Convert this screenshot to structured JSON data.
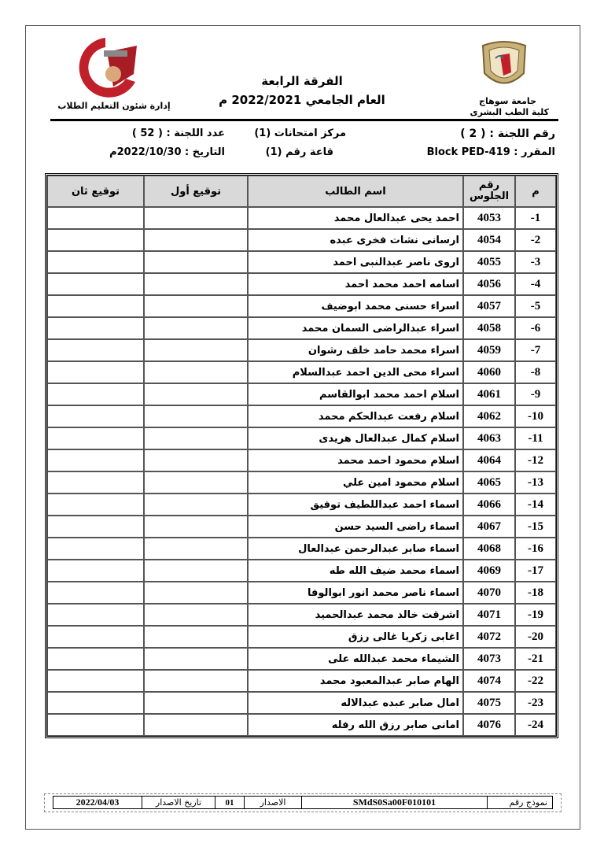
{
  "header": {
    "university": "جامعة سوهاج",
    "faculty": "كلية الطب البشرى",
    "year_level": "الفرقة الرابعة",
    "academic_year": "العام الجامعي 2022/2021 م",
    "department": "إدارة شئون التعليم الطلاب",
    "left_logo_text": "جامعة سوهاج كلية الطب"
  },
  "info": {
    "committee_no": "رقم اللجنة : ( 2 )",
    "exam_center": "مركز امتحانات (1)",
    "committee_count": "عدد اللجنة : ( 52 )",
    "course": "المقرر : Block PED-419",
    "hall": "قاعة رقم (1)",
    "date": "التاريخ : 2022/10/30م"
  },
  "table": {
    "headers": {
      "index": "م",
      "seat": "رقم الجلوس",
      "name": "اسم الطالب",
      "sig1": "توقيع أول",
      "sig2": "توقيع ثان"
    },
    "rows": [
      {
        "index": "1-",
        "seat": "4053",
        "name": "احمد يحى عبدالعال محمد"
      },
      {
        "index": "2-",
        "seat": "4054",
        "name": "ارسانى نشات فخرى عبده"
      },
      {
        "index": "3-",
        "seat": "4055",
        "name": "اروى ناصر عبدالنبى احمد"
      },
      {
        "index": "4-",
        "seat": "4056",
        "name": "اسامه احمد محمد احمد"
      },
      {
        "index": "5-",
        "seat": "4057",
        "name": "اسراء حسنى محمد ابوضيف"
      },
      {
        "index": "6-",
        "seat": "4058",
        "name": "اسراء عبدالراضى السمان محمد"
      },
      {
        "index": "7-",
        "seat": "4059",
        "name": "اسراء محمد حامد خلف رشوان"
      },
      {
        "index": "8-",
        "seat": "4060",
        "name": "اسراء محى الدين احمد عبدالسلام"
      },
      {
        "index": "9-",
        "seat": "4061",
        "name": "اسلام احمد محمد ابوالقاسم"
      },
      {
        "index": "10-",
        "seat": "4062",
        "name": "اسلام رفعت عبدالحكم محمد"
      },
      {
        "index": "11-",
        "seat": "4063",
        "name": "اسلام كمال عبدالعال هريدى"
      },
      {
        "index": "12-",
        "seat": "4064",
        "name": "اسلام محمود احمد محمد"
      },
      {
        "index": "13-",
        "seat": "4065",
        "name": "اسلام محمود امين علي"
      },
      {
        "index": "14-",
        "seat": "4066",
        "name": "اسماء احمد عبداللطيف توفيق"
      },
      {
        "index": "15-",
        "seat": "4067",
        "name": "اسماء راضى السيد حسن"
      },
      {
        "index": "16-",
        "seat": "4068",
        "name": "اسماء صابر عبدالرحمن عبدالعال"
      },
      {
        "index": "17-",
        "seat": "4069",
        "name": "اسماء محمد ضيف الله طه"
      },
      {
        "index": "18-",
        "seat": "4070",
        "name": "اسماء ناصر محمد انور ابوالوفا"
      },
      {
        "index": "19-",
        "seat": "4071",
        "name": "اشرقت خالد محمد عبدالحميد"
      },
      {
        "index": "20-",
        "seat": "4072",
        "name": "اغابى زكريا غالى رزق"
      },
      {
        "index": "21-",
        "seat": "4073",
        "name": "الشيماء محمد عبدالله على"
      },
      {
        "index": "22-",
        "seat": "4074",
        "name": "الهام صابر عبدالمعبود محمد"
      },
      {
        "index": "23-",
        "seat": "4075",
        "name": "امال صابر عبده عبدالاله"
      },
      {
        "index": "24-",
        "seat": "4076",
        "name": "امانى صابر رزق الله رفله"
      }
    ]
  },
  "footer": {
    "form_label": "نموذج رقم",
    "form_no": "SMdS0Sa00F010101",
    "version_label": "الاصدار",
    "version": "01",
    "issue_date_label": "تاريخ الاصدار",
    "issue_date": "2022/04/03"
  },
  "colors": {
    "header_bg": "#d9d9d9",
    "logo_red": "#c0202a",
    "seal_gold": "#b89a5a"
  }
}
